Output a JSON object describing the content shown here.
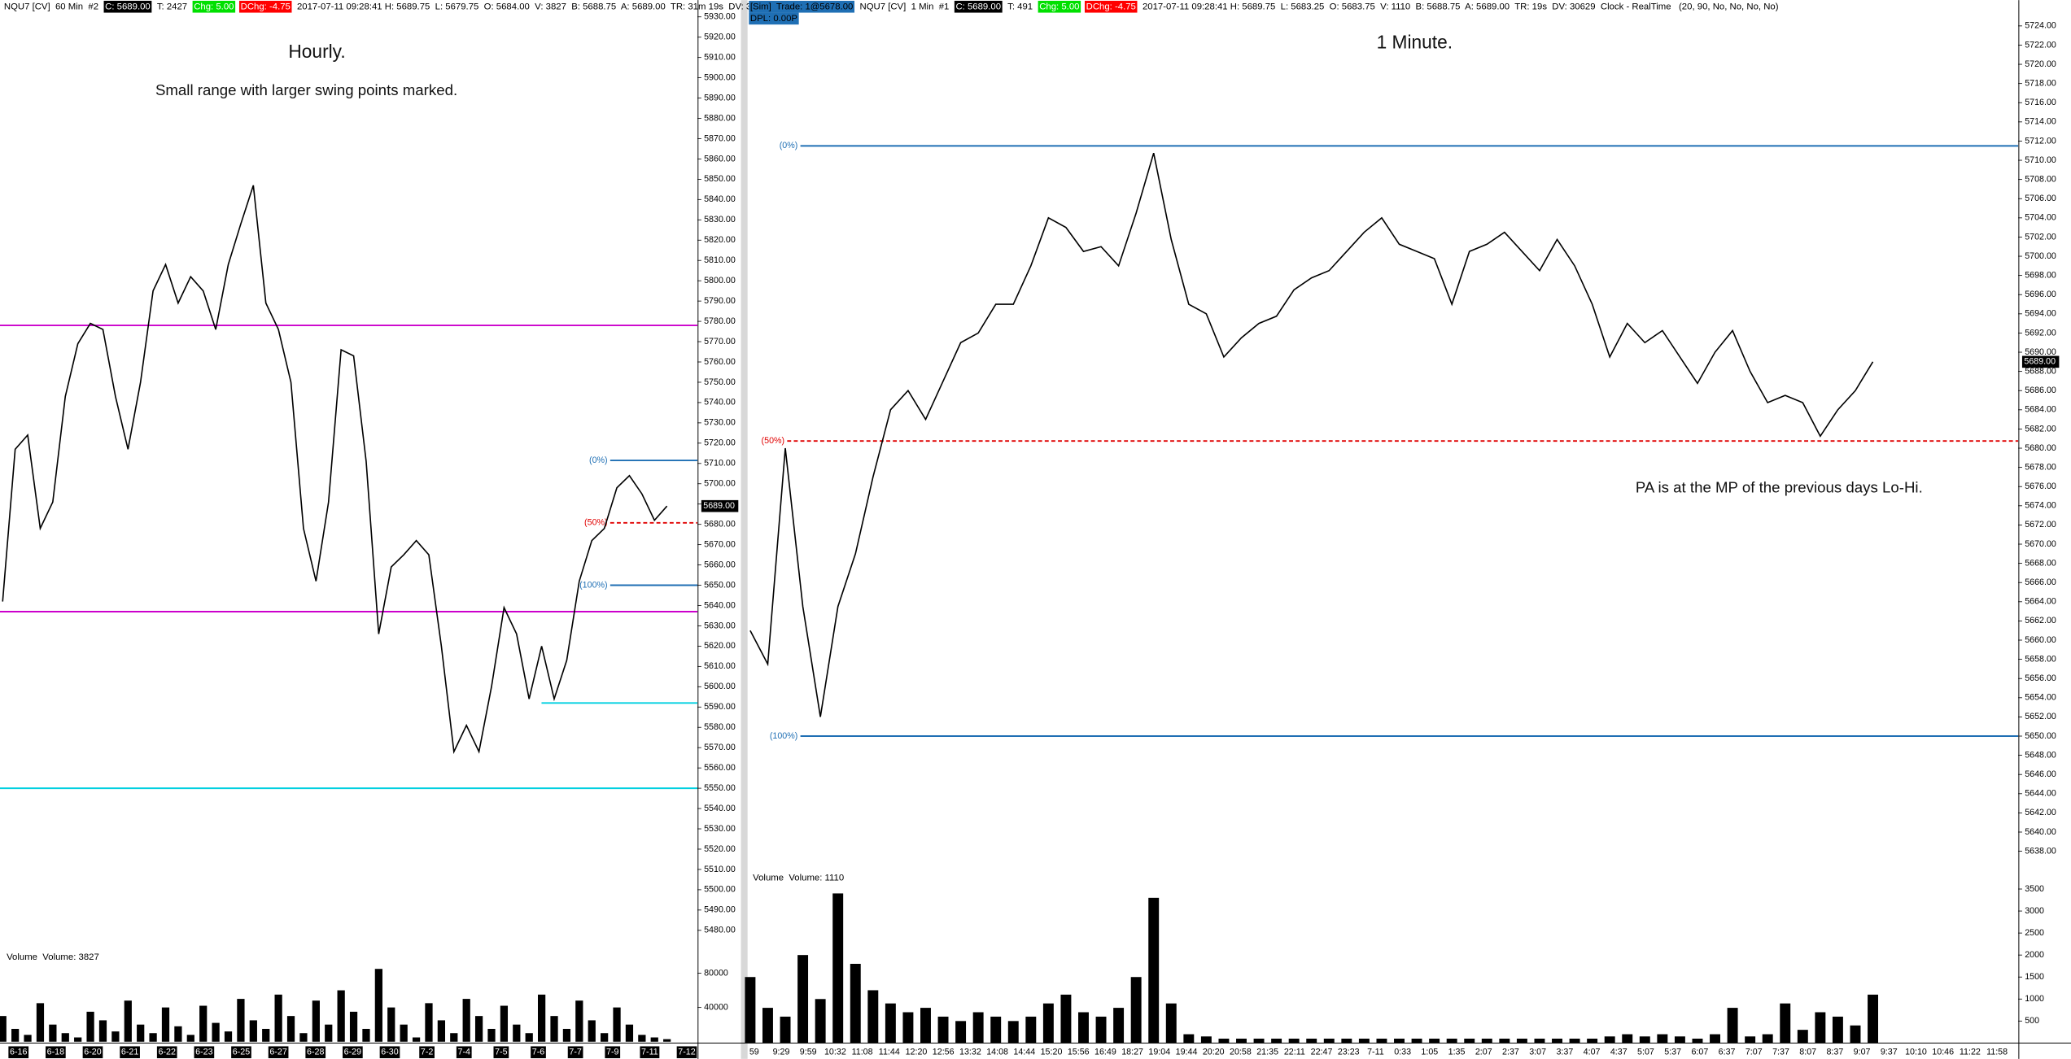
{
  "chart_data": [
    {
      "type": "line",
      "title": "Hourly.",
      "subtitle": "Small range with larger swing points marked.",
      "header": [
        {
          "text": "NQU7 [CV]  60 Min  #2"
        },
        {
          "text": "C: 5689.00",
          "box": "#000000",
          "color": "#ffffff"
        },
        {
          "text": "T: 2427"
        },
        {
          "text": "Chg: 5.00",
          "box": "#00e000",
          "color": "#ffffff"
        },
        {
          "text": "DChg: -4.75",
          "box": "#ff0000",
          "color": "#ffffff"
        },
        {
          "text": "2017-07-11 09:28:41 H: 5689.75  L: 5679.75  O: 5684.00  V: 3827  B: 5688.75  A: 5689.00  TR: 31m 19s  DV: 3"
        }
      ],
      "color": "#000000",
      "values": [
        5642,
        5717,
        5724,
        5678,
        5691,
        5743,
        5769,
        5779,
        5776,
        5743,
        5717,
        5750,
        5795,
        5808,
        5789,
        5802,
        5795,
        5776,
        5808,
        5828,
        5847,
        5789,
        5776,
        5750,
        5678,
        5652,
        5691,
        5766,
        5763,
        5711,
        5626,
        5659,
        5665,
        5672,
        5665,
        5620,
        5568,
        5581,
        5568,
        5600,
        5639,
        5626,
        5594,
        5620,
        5594,
        5613,
        5652,
        5672,
        5678,
        5698,
        5704,
        5695,
        5682,
        5689
      ],
      "ylim": [
        5470,
        5935
      ],
      "yticks": [
        {
          "value": 5480,
          "label": "5480.00"
        },
        {
          "value": 5490,
          "label": "5490.00"
        },
        {
          "value": 5500,
          "label": "5500.00"
        },
        {
          "value": 5510,
          "label": "5510.00"
        },
        {
          "value": 5520,
          "label": "5520.00"
        },
        {
          "value": 5530,
          "label": "5530.00"
        },
        {
          "value": 5540,
          "label": "5540.00"
        },
        {
          "value": 5550,
          "label": "5550.00"
        },
        {
          "value": 5560,
          "label": "5560.00"
        },
        {
          "value": 5570,
          "label": "5570.00"
        },
        {
          "value": 5580,
          "label": "5580.00"
        },
        {
          "value": 5590,
          "label": "5590.00"
        },
        {
          "value": 5600,
          "label": "5600.00"
        },
        {
          "value": 5610,
          "label": "5610.00"
        },
        {
          "value": 5620,
          "label": "5620.00"
        },
        {
          "value": 5630,
          "label": "5630.00"
        },
        {
          "value": 5640,
          "label": "5640.00"
        },
        {
          "value": 5650,
          "label": "5650.00"
        },
        {
          "value": 5660,
          "label": "5660.00"
        },
        {
          "value": 5670,
          "label": "5670.00"
        },
        {
          "value": 5680,
          "label": "5680.00"
        },
        {
          "value": 5690,
          "label": "5690.00"
        },
        {
          "value": 5700,
          "label": "5700.00"
        },
        {
          "value": 5710,
          "label": "5710.00"
        },
        {
          "value": 5720,
          "label": "5720.00"
        },
        {
          "value": 5730,
          "label": "5730.00"
        },
        {
          "value": 5740,
          "label": "5740.00"
        },
        {
          "value": 5750,
          "label": "5750.00"
        },
        {
          "value": 5760,
          "label": "5760.00"
        },
        {
          "value": 5770,
          "label": "5770.00"
        },
        {
          "value": 5780,
          "label": "5780.00"
        },
        {
          "value": 5790,
          "label": "5790.00"
        },
        {
          "value": 5800,
          "label": "5800.00"
        },
        {
          "value": 5810,
          "label": "5810.00"
        },
        {
          "value": 5820,
          "label": "5820.00"
        },
        {
          "value": 5830,
          "label": "5830.00"
        },
        {
          "value": 5840,
          "label": "5840.00"
        },
        {
          "value": 5850,
          "label": "5850.00"
        },
        {
          "value": 5860,
          "label": "5860.00"
        },
        {
          "value": 5870,
          "label": "5870.00"
        },
        {
          "value": 5880,
          "label": "5880.00"
        },
        {
          "value": 5890,
          "label": "5890.00"
        },
        {
          "value": 5900,
          "label": "5900.00"
        },
        {
          "value": 5910,
          "label": "5910.00"
        },
        {
          "value": 5920,
          "label": "5920.00"
        },
        {
          "value": 5930,
          "label": "5930.00"
        }
      ],
      "levels": [
        {
          "value": 5778,
          "color": "#cc00cc"
        },
        {
          "value": 5637,
          "color": "#cc00cc"
        },
        {
          "value": 5592,
          "color": "#00d0e0"
        },
        {
          "value": 5550,
          "color": "#00d0e0"
        },
        {
          "value": 5711.5,
          "color": "#1f6fb4",
          "label": "(0%)"
        },
        {
          "value": 5680.75,
          "color": "#e00000",
          "dashed": true,
          "label": "(50%)"
        },
        {
          "value": 5650,
          "color": "#1f6fb4",
          "label": "(100%)"
        }
      ],
      "last_price": {
        "value": 5689,
        "label": "5689.00"
      },
      "xtick_labels": [
        "6-16",
        "6-18",
        "6-20",
        "6-21",
        "6-22",
        "6-23",
        "6-25",
        "6-27",
        "6-28",
        "6-29",
        "6-30",
        "7-2",
        "7-4",
        "7-5",
        "7-6",
        "7-7",
        "7-9",
        "7-11",
        "7-12"
      ],
      "xtick_box": "#000000",
      "volume": {
        "title": "Volume  Volume: 3827",
        "color": "#000000",
        "values": [
          30000,
          15000,
          8000,
          45000,
          20000,
          10000,
          5000,
          35000,
          25000,
          12000,
          48000,
          20000,
          10000,
          40000,
          18000,
          8000,
          42000,
          22000,
          12000,
          50000,
          25000,
          15000,
          55000,
          30000,
          10000,
          48000,
          20000,
          60000,
          35000,
          15000,
          85000,
          40000,
          20000,
          5000,
          45000,
          25000,
          10000,
          50000,
          30000,
          15000,
          42000,
          20000,
          10000,
          55000,
          30000,
          15000,
          48000,
          25000,
          10000,
          40000,
          20000,
          8000,
          5000,
          3000
        ],
        "ylim": [
          0,
          94000
        ],
        "yticks": [
          40000,
          80000
        ]
      }
    },
    {
      "type": "line",
      "title": "1 Minute.",
      "annotation": "PA is at the MP of the previous days Lo-Hi.",
      "header": [
        {
          "text": "[Sim]  Trade: 1@5678.00",
          "box": "#1f6fb4",
          "color": "#000000"
        },
        {
          "text": "NQU7 [CV]  1 Min  #1"
        },
        {
          "text": "C: 5689.00",
          "box": "#000000",
          "color": "#ffffff"
        },
        {
          "text": "T: 491"
        },
        {
          "text": "Chg: 5.00",
          "box": "#00e000",
          "color": "#ffffff"
        },
        {
          "text": "DChg: -4.75",
          "box": "#ff0000",
          "color": "#ffffff"
        },
        {
          "text": "2017-07-11 09:28:41 H: 5689.75  L: 5683.25  O: 5683.75  V: 1110  B: 5688.75  A: 5689.00  TR: 19s  DV: 30629  Clock - RealTime   (20, 90, No, No, No, No)"
        }
      ],
      "header2": [
        {
          "text": "DPL: 0.00P",
          "box": "#1f6fb4",
          "color": "#000000"
        }
      ],
      "color": "#000000",
      "values": [
        5661,
        5657.5,
        5680,
        5663.5,
        5652,
        5663.5,
        5669,
        5677,
        5684,
        5686,
        5683,
        5687,
        5691,
        5692,
        5695,
        5695,
        5699,
        5704,
        5703,
        5700.5,
        5701,
        5699,
        5704.5,
        5710.75,
        5701.75,
        5695,
        5694,
        5689.5,
        5691.5,
        5693,
        5693.75,
        5696.5,
        5697.75,
        5698.5,
        5700.5,
        5702.5,
        5704,
        5701.25,
        5700.5,
        5699.75,
        5695,
        5700.5,
        5701.25,
        5702.5,
        5700.5,
        5698.5,
        5701.75,
        5699,
        5695,
        5689.5,
        5693,
        5691,
        5692.25,
        5689.5,
        5686.75,
        5690,
        5692.25,
        5688,
        5684.75,
        5685.5,
        5684.75,
        5681.25,
        5684,
        5686,
        5689
      ],
      "ylim": [
        5637,
        5726
      ],
      "yticks": [
        {
          "value": 5638,
          "label": "5638.00"
        },
        {
          "value": 5640,
          "label": "5640.00"
        },
        {
          "value": 5642,
          "label": "5642.00"
        },
        {
          "value": 5644,
          "label": "5644.00"
        },
        {
          "value": 5646,
          "label": "5646.00"
        },
        {
          "value": 5648,
          "label": "5648.00"
        },
        {
          "value": 5650,
          "label": "5650.00"
        },
        {
          "value": 5652,
          "label": "5652.00"
        },
        {
          "value": 5654,
          "label": "5654.00"
        },
        {
          "value": 5656,
          "label": "5656.00"
        },
        {
          "value": 5658,
          "label": "5658.00"
        },
        {
          "value": 5660,
          "label": "5660.00"
        },
        {
          "value": 5662,
          "label": "5662.00"
        },
        {
          "value": 5664,
          "label": "5664.00"
        },
        {
          "value": 5666,
          "label": "5666.00"
        },
        {
          "value": 5668,
          "label": "5668.00"
        },
        {
          "value": 5670,
          "label": "5670.00"
        },
        {
          "value": 5672,
          "label": "5672.00"
        },
        {
          "value": 5674,
          "label": "5674.00"
        },
        {
          "value": 5676,
          "label": "5676.00"
        },
        {
          "value": 5678,
          "label": "5678.00"
        },
        {
          "value": 5680,
          "label": "5680.00"
        },
        {
          "value": 5682,
          "label": "5682.00"
        },
        {
          "value": 5684,
          "label": "5684.00"
        },
        {
          "value": 5686,
          "label": "5686.00"
        },
        {
          "value": 5688,
          "label": "5688.00"
        },
        {
          "value": 5690,
          "label": "5690.00"
        },
        {
          "value": 5692,
          "label": "5692.00"
        },
        {
          "value": 5694,
          "label": "5694.00"
        },
        {
          "value": 5696,
          "label": "5696.00"
        },
        {
          "value": 5698,
          "label": "5698.00"
        },
        {
          "value": 5700,
          "label": "5700.00"
        },
        {
          "value": 5702,
          "label": "5702.00"
        },
        {
          "value": 5704,
          "label": "5704.00"
        },
        {
          "value": 5706,
          "label": "5706.00"
        },
        {
          "value": 5708,
          "label": "5708.00"
        },
        {
          "value": 5710,
          "label": "5710.00"
        },
        {
          "value": 5712,
          "label": "5712.00"
        },
        {
          "value": 5714,
          "label": "5714.00"
        },
        {
          "value": 5716,
          "label": "5716.00"
        },
        {
          "value": 5718,
          "label": "5718.00"
        },
        {
          "value": 5720,
          "label": "5720.00"
        },
        {
          "value": 5722,
          "label": "5722.00"
        },
        {
          "value": 5724,
          "label": "5724.00"
        }
      ],
      "levels": [
        {
          "value": 5711.5,
          "color": "#1f6fb4",
          "label": "(0%)"
        },
        {
          "value": 5680.75,
          "color": "#e00000",
          "dashed": true,
          "label": "(50%)"
        },
        {
          "value": 5650,
          "color": "#1f6fb4",
          "label": "(100%)"
        }
      ],
      "last_price": {
        "value": 5689,
        "label": "5689.00"
      },
      "xtick_labels": [
        "59",
        "9:29",
        "9:59",
        "10:32",
        "11:08",
        "11:44",
        "12:20",
        "12:56",
        "13:32",
        "14:08",
        "14:44",
        "15:20",
        "15:56",
        "16:49",
        "18:27",
        "19:04",
        "19:44",
        "20:20",
        "20:58",
        "21:35",
        "22:11",
        "22:47",
        "23:23",
        "7-11",
        "0:33",
        "1:05",
        "1:35",
        "2:07",
        "2:37",
        "3:07",
        "3:37",
        "4:07",
        "4:37",
        "5:07",
        "5:37",
        "6:07",
        "6:37",
        "7:07",
        "7:37",
        "8:07",
        "8:37",
        "9:07",
        "9:37",
        "10:10",
        "10:46",
        "11:22",
        "11:58"
      ],
      "volume": {
        "title": "Volume  Volume: 1110",
        "color": "#000000",
        "values": [
          1500,
          800,
          600,
          2000,
          1000,
          3400,
          1800,
          1200,
          900,
          700,
          800,
          600,
          500,
          700,
          600,
          500,
          600,
          900,
          1100,
          700,
          600,
          800,
          1500,
          3300,
          900,
          200,
          150,
          100,
          100,
          100,
          100,
          100,
          100,
          100,
          100,
          100,
          100,
          100,
          100,
          100,
          100,
          100,
          100,
          100,
          100,
          100,
          100,
          100,
          100,
          150,
          200,
          150,
          200,
          150,
          100,
          200,
          800,
          150,
          200,
          900,
          300,
          700,
          600,
          400,
          1100
        ],
        "ylim": [
          0,
          3900
        ],
        "yticks": [
          500,
          1000,
          1500,
          2000,
          2500,
          3000,
          3500
        ]
      }
    }
  ]
}
